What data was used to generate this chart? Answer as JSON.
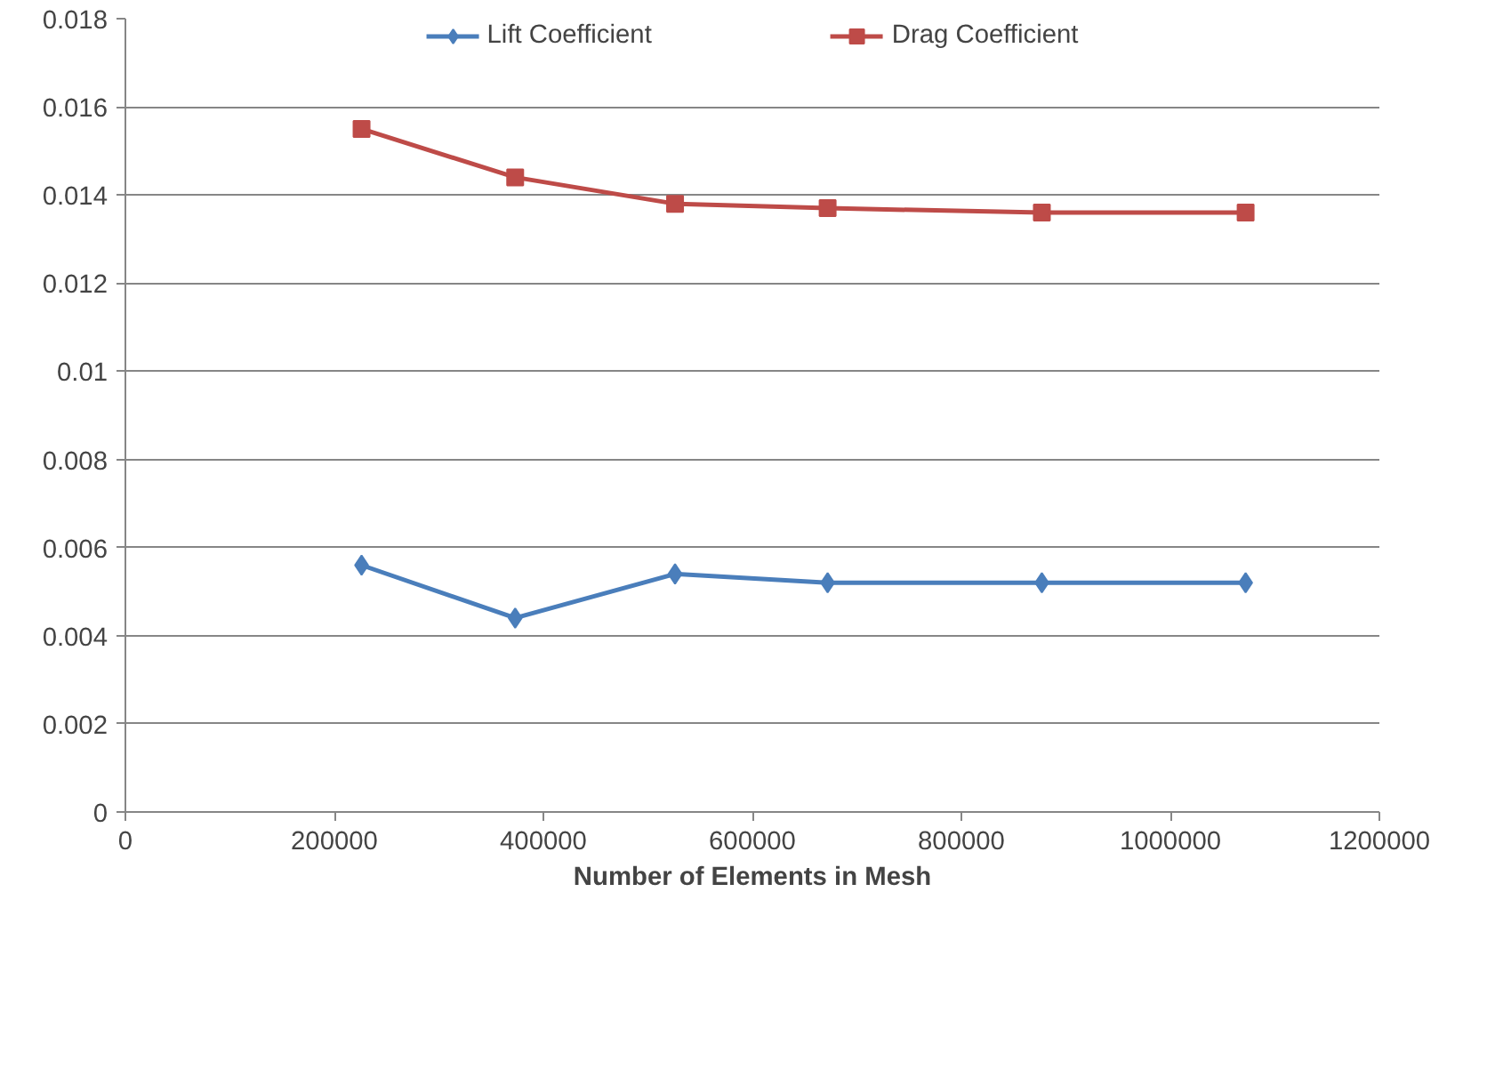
{
  "chart_data": {
    "type": "line",
    "xlabel": "Number of Elements in Mesh",
    "x": [
      226000,
      373000,
      526000,
      672000,
      877000,
      1072000
    ],
    "series": [
      {
        "name": "Lift Coefficient",
        "color": "#4a7ebb",
        "marker": "diamond",
        "values": [
          0.0056,
          0.0044,
          0.0054,
          0.0052,
          0.0052,
          0.0052
        ]
      },
      {
        "name": "Drag Coefficient",
        "color": "#be4b48",
        "marker": "square",
        "values": [
          0.0155,
          0.0144,
          0.0138,
          0.0137,
          0.0136,
          0.0136
        ]
      }
    ],
    "xlim": [
      0,
      1200000
    ],
    "xticks": [
      0,
      200000,
      400000,
      600000,
      800000,
      1000000,
      1200000
    ],
    "ylim": [
      0,
      0.018
    ],
    "yticks": [
      0,
      0.002,
      0.004,
      0.006,
      0.008,
      0.01,
      0.012,
      0.014,
      0.016,
      0.018
    ],
    "grid": "y",
    "legend": "top"
  }
}
